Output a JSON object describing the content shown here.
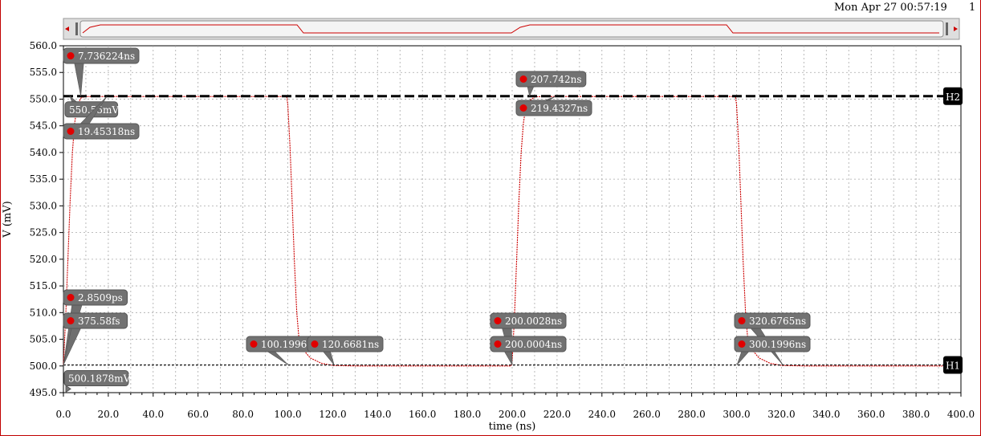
{
  "header": {
    "timestamp": "Mon Apr 27 00:57:19",
    "subplot_index": "1"
  },
  "chart_data": {
    "type": "line",
    "xlabel": "time (ns)",
    "ylabel": "V (mV)",
    "xlim": [
      0,
      400
    ],
    "ylim": [
      495,
      560
    ],
    "grid": true,
    "x_ticks": [
      "0.0",
      "20.0",
      "40.0",
      "60.0",
      "80.0",
      "100.0",
      "120.0",
      "140.0",
      "160.0",
      "180.0",
      "200.0",
      "220.0",
      "240.0",
      "260.0",
      "280.0",
      "300.0",
      "320.0",
      "340.0",
      "360.0",
      "380.0",
      "400.0"
    ],
    "y_ticks": [
      "495.0",
      "500.0",
      "505.0",
      "510.0",
      "515.0",
      "520.0",
      "525.0",
      "530.0",
      "535.0",
      "540.0",
      "545.0",
      "550.0",
      "555.0",
      "560.0"
    ],
    "series": [
      {
        "color": "#cc0000",
        "x": [
          0,
          1,
          2,
          3,
          4,
          5,
          6,
          7,
          8,
          10,
          12,
          15,
          20,
          40,
          60,
          80,
          99.5,
          100,
          101,
          102,
          103,
          104,
          105,
          107,
          110,
          115,
          120,
          130,
          160,
          199.5,
          200,
          201,
          202,
          203,
          204,
          205,
          206,
          208,
          210,
          213,
          220,
          240,
          260,
          280,
          299.5,
          300,
          301,
          302,
          303,
          304,
          305,
          307,
          310,
          315,
          320,
          330,
          360,
          400
        ],
        "y": [
          500.2,
          509,
          520,
          531,
          540,
          545.5,
          548.3,
          549.6,
          550.3,
          550.5,
          550.5,
          550.5,
          550.5,
          550.5,
          550.5,
          550.5,
          550.5,
          549,
          541,
          530,
          519,
          510,
          505,
          503,
          501.5,
          500.5,
          500.1,
          500.0,
          500.0,
          500.0,
          501,
          509,
          520,
          531,
          540,
          545.5,
          548.3,
          549.8,
          550.4,
          550.5,
          550.5,
          550.5,
          550.5,
          550.5,
          550.5,
          549,
          541,
          530,
          519,
          510,
          505,
          503,
          501.5,
          500.5,
          500.1,
          500.0,
          500.0,
          500.0
        ]
      }
    ],
    "horizontal_markers": [
      {
        "label": "H2",
        "y": 550.55,
        "value_label": "550.55mV"
      },
      {
        "label": "H1",
        "y": 500.1878,
        "value_label": "500.1878mV"
      }
    ],
    "annotations": [
      {
        "label": "7.736224ns",
        "x": 7.736224,
        "y": 550.55
      },
      {
        "label": "19.45318ns",
        "x": 19.45318,
        "y": 550.55
      },
      {
        "label": "2.8509ps",
        "x": 0.0028509,
        "y": 500.1878
      },
      {
        "label": "375.58fs",
        "x": 0.00037558,
        "y": 500.1878
      },
      {
        "label": "100.1996ns",
        "x": 100.1996,
        "y": 500.1878
      },
      {
        "label": "120.6681ns",
        "x": 120.6681,
        "y": 500.1878
      },
      {
        "label": "207.742ns",
        "x": 207.742,
        "y": 550.55
      },
      {
        "label": "219.4327ns",
        "x": 219.4327,
        "y": 550.55
      },
      {
        "label": "200.0028ns",
        "x": 200.0028,
        "y": 500.1878
      },
      {
        "label": "200.0004ns",
        "x": 200.0004,
        "y": 500.1878
      },
      {
        "label": "320.6765ns",
        "x": 320.6765,
        "y": 500.1878
      },
      {
        "label": "300.1996ns",
        "x": 300.1996,
        "y": 500.1878
      }
    ]
  }
}
